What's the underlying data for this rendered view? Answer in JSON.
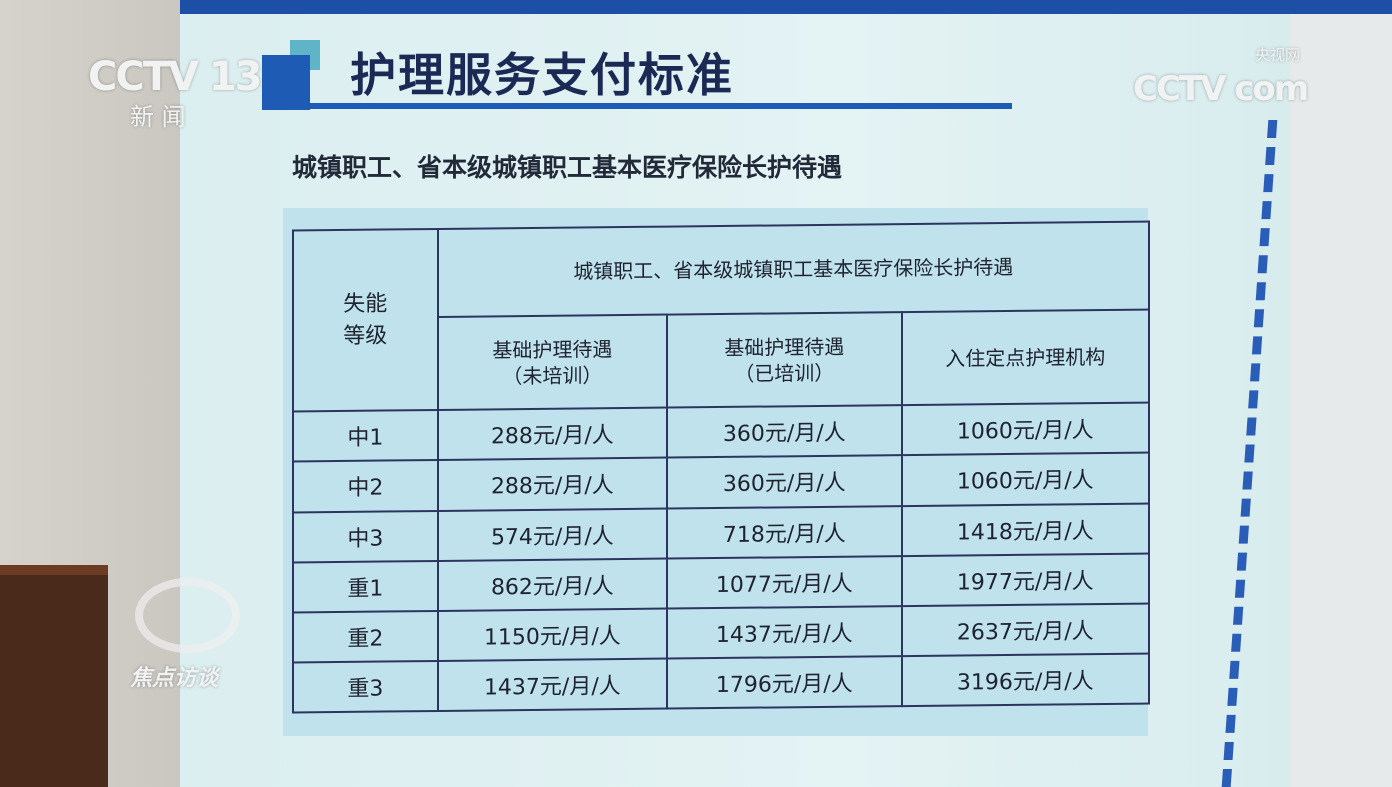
{
  "logos": {
    "channel": "CCTV 13",
    "channel_sub": "新 闻",
    "site": "CCTV com",
    "site_cn": "央视网",
    "program": "焦点访谈"
  },
  "poster": {
    "title": "护理服务支付标准",
    "subtitle": "城镇职工、省本级城镇职工基本医疗保险长护待遇"
  },
  "table": {
    "corner": "失能\n等级",
    "group_header": "城镇职工、省本级城镇职工基本医疗保险长护待遇",
    "columns": [
      "基础护理待遇\n（未培训）",
      "基础护理待遇\n（已培训）",
      "入住定点护理机构"
    ],
    "rows": [
      {
        "level": "中1",
        "values": [
          "288元/月/人",
          "360元/月/人",
          "1060元/月/人"
        ]
      },
      {
        "level": "中2",
        "values": [
          "288元/月/人",
          "360元/月/人",
          "1060元/月/人"
        ]
      },
      {
        "level": "中3",
        "values": [
          "574元/月/人",
          "718元/月/人",
          "1418元/月/人"
        ]
      },
      {
        "level": "重1",
        "values": [
          "862元/月/人",
          "1077元/月/人",
          "1977元/月/人"
        ]
      },
      {
        "level": "重2",
        "values": [
          "1150元/月/人",
          "1437元/月/人",
          "2637元/月/人"
        ]
      },
      {
        "level": "重3",
        "values": [
          "1437元/月/人",
          "1796元/月/人",
          "3196元/月/人"
        ]
      }
    ]
  }
}
